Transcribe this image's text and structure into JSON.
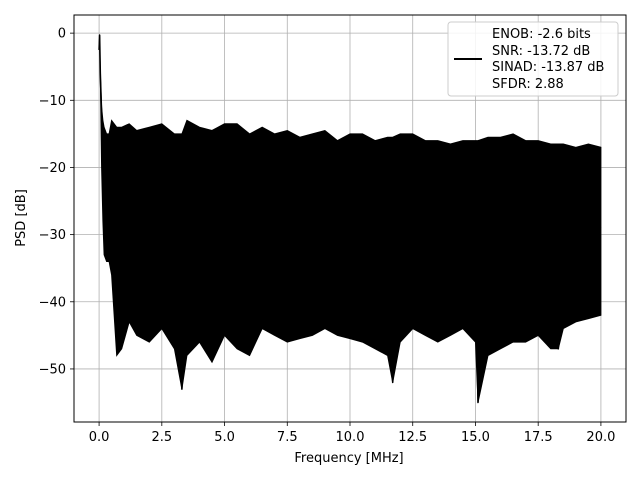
{
  "chart_data": {
    "type": "line",
    "title": "",
    "xlabel": "Frequency [MHz]",
    "ylabel": "PSD [dB]",
    "xlim": [
      -1.0,
      21.0
    ],
    "ylim": [
      -57.9,
      2.7
    ],
    "x_ticks": [
      0.0,
      2.5,
      5.0,
      7.5,
      10.0,
      12.5,
      15.0,
      17.5,
      20.0
    ],
    "x_tick_labels": [
      "0.0",
      "2.5",
      "5.0",
      "7.5",
      "10.0",
      "12.5",
      "15.0",
      "17.5",
      "20.0"
    ],
    "y_ticks": [
      0,
      -10,
      -20,
      -30,
      -40,
      -50
    ],
    "y_tick_labels": [
      "0",
      "−10",
      "−20",
      "−30",
      "−40",
      "−50"
    ],
    "grid": true,
    "legend_position": "top-right",
    "legend_lines": [
      "ENOB: -2.6 bits",
      "SNR: -13.72 dB",
      "SINAD: -13.87 dB",
      "SFDR: 2.88"
    ],
    "series": [
      {
        "color": "#000000",
        "x": [
          0.0,
          0.02,
          0.05,
          0.1,
          0.15,
          0.2,
          0.3,
          0.4,
          0.5,
          0.7,
          0.9,
          1.2,
          1.5,
          2.0,
          2.5,
          3.0,
          3.3,
          3.5,
          4.0,
          4.5,
          5.0,
          5.5,
          6.0,
          6.5,
          7.0,
          7.5,
          8.0,
          8.5,
          9.0,
          9.5,
          10.0,
          10.5,
          11.0,
          11.5,
          11.7,
          12.0,
          12.5,
          13.0,
          13.5,
          14.0,
          14.5,
          15.0,
          15.1,
          15.5,
          16.0,
          16.5,
          17.0,
          17.5,
          18.0,
          18.3,
          18.5,
          19.0,
          19.5,
          20.0
        ],
        "y": [
          -2.5,
          -0.3,
          -6.0,
          -12.0,
          -19.5,
          -27.0,
          -29.5,
          -33.0,
          -34.0,
          -30.0,
          -28.0,
          -27.0,
          -26.0,
          -28.0,
          -27.0,
          -31.0,
          -53.0,
          -28.0,
          -27.0,
          -28.5,
          -27.5,
          -28.0,
          -27.0,
          -28.5,
          -27.0,
          -28.0,
          -29.0,
          -27.5,
          -28.0,
          -29.0,
          -27.5,
          -28.0,
          -28.5,
          -29.0,
          -52.0,
          -28.0,
          -28.5,
          -27.5,
          -28.0,
          -29.0,
          -28.0,
          -29.0,
          -55.0,
          -28.0,
          -27.5,
          -28.0,
          -29.0,
          -28.5,
          -28.0,
          -47.0,
          -28.0,
          -29.0,
          -28.0,
          -29.0
        ],
        "band_upper": [
          -2.5,
          -0.3,
          -6.0,
          -11.0,
          -13.0,
          -14.0,
          -15.0,
          -15.0,
          -13.0,
          -14.0,
          -14.0,
          -13.5,
          -14.5,
          -14.0,
          -13.5,
          -15.0,
          -15.0,
          -13.0,
          -14.0,
          -14.5,
          -13.5,
          -13.5,
          -15.0,
          -14.0,
          -15.0,
          -14.5,
          -15.5,
          -15.0,
          -14.5,
          -16.0,
          -15.0,
          -15.0,
          -16.0,
          -15.5,
          -15.5,
          -15.0,
          -15.0,
          -16.0,
          -16.0,
          -16.5,
          -16.0,
          -16.0,
          -16.0,
          -15.5,
          -15.5,
          -15.0,
          -16.0,
          -16.0,
          -16.5,
          -16.5,
          -16.5,
          -17.0,
          -16.5,
          -17.0
        ],
        "band_lower": [
          -2.5,
          -0.3,
          -6.0,
          -20.0,
          -28.0,
          -33.0,
          -34.0,
          -34.0,
          -36.0,
          -48.0,
          -47.0,
          -43.0,
          -45.0,
          -46.0,
          -44.0,
          -47.0,
          -53.0,
          -48.0,
          -46.0,
          -49.0,
          -45.0,
          -47.0,
          -48.0,
          -44.0,
          -45.0,
          -46.0,
          -45.5,
          -45.0,
          -44.0,
          -45.0,
          -45.5,
          -46.0,
          -47.0,
          -48.0,
          -52.0,
          -46.0,
          -44.0,
          -45.0,
          -46.0,
          -45.0,
          -44.0,
          -46.0,
          -55.0,
          -48.0,
          -47.0,
          -46.0,
          -46.0,
          -45.0,
          -47.0,
          -47.0,
          -44.0,
          -43.0,
          -42.5,
          -42.0
        ]
      }
    ]
  }
}
